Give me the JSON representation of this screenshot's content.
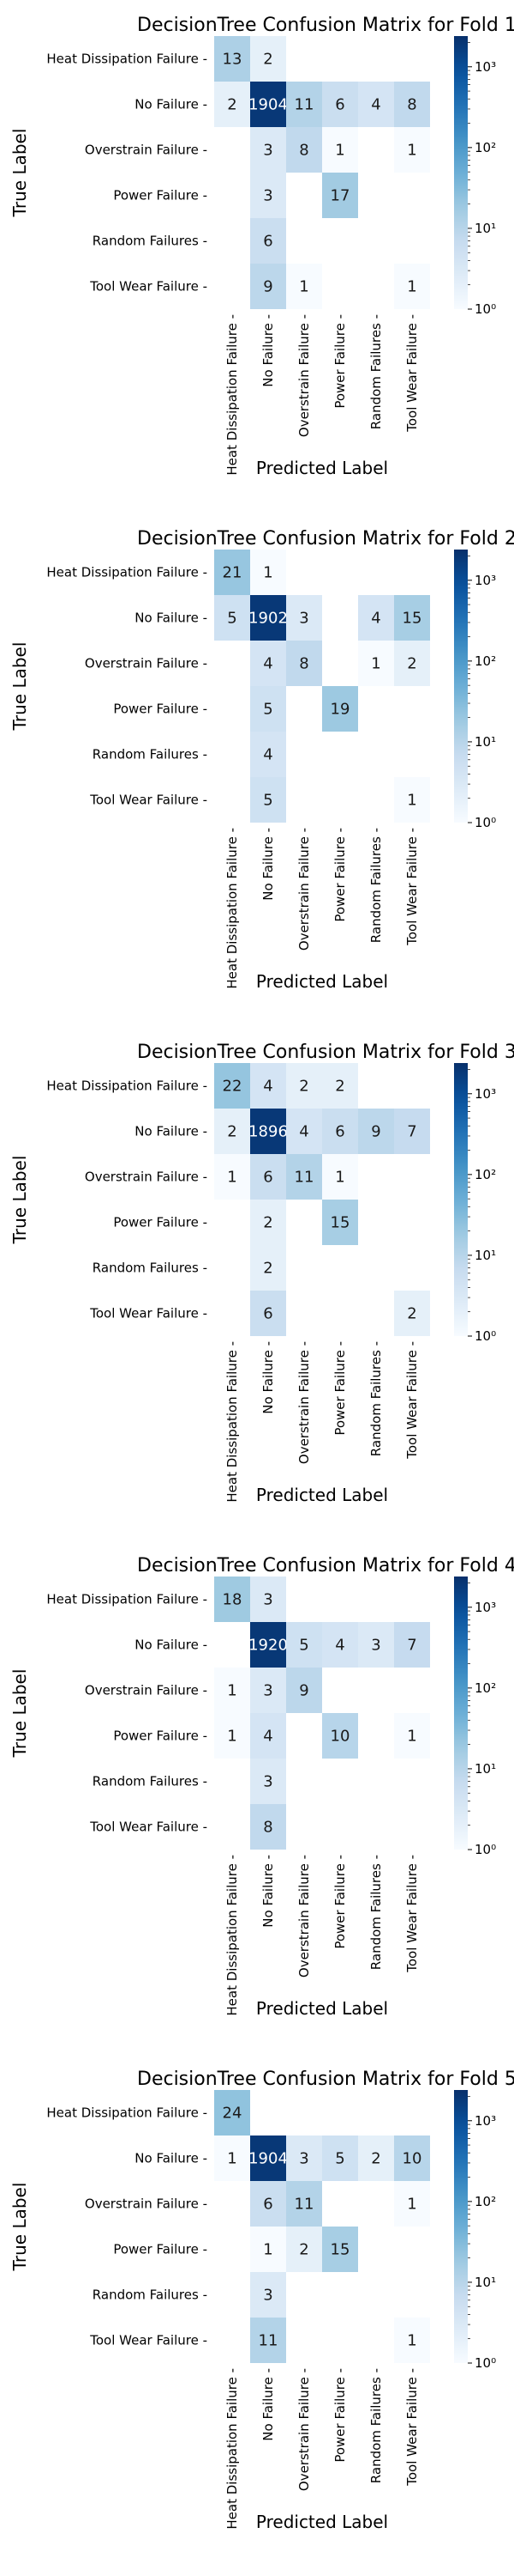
{
  "labels": [
    "Heat Dissipation Failure",
    "No Failure",
    "Overstrain Failure",
    "Power Failure",
    "Random Failures",
    "Tool Wear Failure"
  ],
  "colorbar": {
    "scale": "log",
    "ticks": [
      "10⁰",
      "10¹",
      "10²",
      "10³"
    ],
    "colormap": "Blues"
  },
  "chart_data": [
    {
      "type": "heatmap",
      "title": "DecisionTree Confusion Matrix for Fold 1",
      "xlabel": "Predicted Label",
      "ylabel": "True Label",
      "matrix": [
        [
          13,
          2,
          0,
          0,
          0,
          0
        ],
        [
          2,
          1904,
          11,
          6,
          4,
          8
        ],
        [
          0,
          3,
          8,
          1,
          0,
          1
        ],
        [
          0,
          3,
          0,
          17,
          0,
          0
        ],
        [
          0,
          6,
          0,
          0,
          0,
          0
        ],
        [
          0,
          9,
          1,
          0,
          0,
          1
        ]
      ]
    },
    {
      "type": "heatmap",
      "title": "DecisionTree Confusion Matrix for Fold 2",
      "xlabel": "Predicted Label",
      "ylabel": "True Label",
      "matrix": [
        [
          21,
          1,
          0,
          0,
          0,
          0
        ],
        [
          5,
          1902,
          3,
          0,
          4,
          15
        ],
        [
          0,
          4,
          8,
          0,
          1,
          2
        ],
        [
          0,
          5,
          0,
          19,
          0,
          0
        ],
        [
          0,
          4,
          0,
          0,
          0,
          0
        ],
        [
          0,
          5,
          0,
          0,
          0,
          1
        ]
      ]
    },
    {
      "type": "heatmap",
      "title": "DecisionTree Confusion Matrix for Fold 3",
      "xlabel": "Predicted Label",
      "ylabel": "True Label",
      "matrix": [
        [
          22,
          4,
          2,
          2,
          0,
          0
        ],
        [
          2,
          1896,
          4,
          6,
          9,
          7
        ],
        [
          1,
          6,
          11,
          1,
          0,
          0
        ],
        [
          0,
          2,
          0,
          15,
          0,
          0
        ],
        [
          0,
          2,
          0,
          0,
          0,
          0
        ],
        [
          0,
          6,
          0,
          0,
          0,
          2
        ]
      ]
    },
    {
      "type": "heatmap",
      "title": "DecisionTree Confusion Matrix for Fold 4",
      "xlabel": "Predicted Label",
      "ylabel": "True Label",
      "matrix": [
        [
          18,
          3,
          0,
          0,
          0,
          0
        ],
        [
          0,
          1920,
          5,
          4,
          3,
          7
        ],
        [
          1,
          3,
          9,
          0,
          0,
          0
        ],
        [
          1,
          4,
          0,
          10,
          0,
          1
        ],
        [
          0,
          3,
          0,
          0,
          0,
          0
        ],
        [
          0,
          8,
          0,
          0,
          0,
          0
        ]
      ]
    },
    {
      "type": "heatmap",
      "title": "DecisionTree Confusion Matrix for Fold 5",
      "xlabel": "Predicted Label",
      "ylabel": "True Label",
      "matrix": [
        [
          24,
          0,
          0,
          0,
          0,
          0
        ],
        [
          1,
          1904,
          3,
          5,
          2,
          10
        ],
        [
          0,
          6,
          11,
          0,
          0,
          1
        ],
        [
          0,
          1,
          2,
          15,
          0,
          0
        ],
        [
          0,
          3,
          0,
          0,
          0,
          0
        ],
        [
          0,
          11,
          0,
          0,
          0,
          1
        ]
      ]
    }
  ]
}
